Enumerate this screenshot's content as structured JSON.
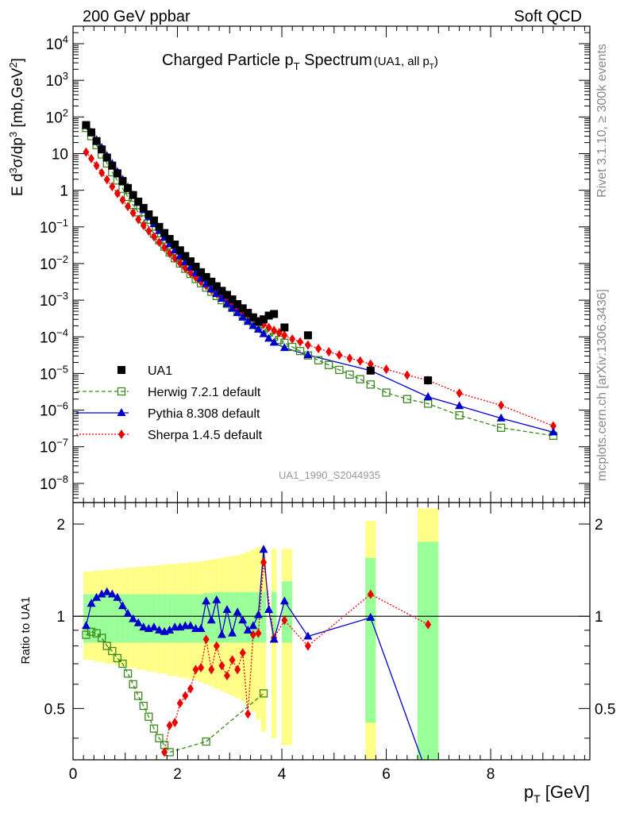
{
  "header": {
    "left": "200 GeV ppbar",
    "right": "Soft QCD"
  },
  "side": {
    "rivet": "Rivet 3.1.10, ≥ 300k events",
    "mcplots": "mcplots.cern.ch [arXiv:1306.3436]"
  },
  "title": {
    "main": "Charged Particle p",
    "main_sub": "T",
    "main_after": " Spectrum",
    "small": "(UA1, all p",
    "small_sub": "T",
    "small_after": ")"
  },
  "analysis_id": "UA1_1990_S2044935",
  "colors": {
    "data": "#000000",
    "herwig": "#3a8a1e",
    "pythia": "#0000cc",
    "sherpa": "#ee0000",
    "band_inner": "#99ff99",
    "band_outer": "#ffff88"
  },
  "chart_data": [
    {
      "type": "scatter",
      "panel": "main",
      "ylabel": "E d³σ/dp³ [mb,GeV⁻²]",
      "yscale": "log",
      "ylim": [
        3e-09,
        30000
      ],
      "xlim": [
        0,
        9.9
      ],
      "y_ticklabels": [
        {
          "base": "10",
          "exp": "4"
        },
        {
          "base": "10",
          "exp": "3"
        },
        {
          "base": "10",
          "exp": "2"
        },
        {
          "base": "10",
          "exp": ""
        },
        {
          "base": "1",
          "exp": ""
        },
        {
          "base": "10",
          "exp": "−1"
        },
        {
          "base": "10",
          "exp": "−2"
        },
        {
          "base": "10",
          "exp": "−3"
        },
        {
          "base": "10",
          "exp": "−4"
        },
        {
          "base": "10",
          "exp": "−5"
        },
        {
          "base": "10",
          "exp": "−6"
        },
        {
          "base": "10",
          "exp": "−7"
        },
        {
          "base": "10",
          "exp": "−8"
        }
      ],
      "legend": [
        {
          "key": "data",
          "label": "UA1"
        },
        {
          "key": "herwig",
          "label": "Herwig 7.2.1 default"
        },
        {
          "key": "pythia",
          "label": "Pythia 8.308 default"
        },
        {
          "key": "sherpa",
          "label": "Sherpa 1.4.5 default"
        }
      ],
      "series": [
        {
          "name": "UA1",
          "key": "data",
          "x": [
            0.25,
            0.35,
            0.45,
            0.55,
            0.65,
            0.75,
            0.85,
            0.95,
            1.05,
            1.15,
            1.25,
            1.35,
            1.45,
            1.55,
            1.65,
            1.75,
            1.85,
            1.95,
            2.05,
            2.15,
            2.25,
            2.35,
            2.45,
            2.55,
            2.65,
            2.75,
            2.85,
            2.95,
            3.05,
            3.15,
            3.25,
            3.35,
            3.45,
            3.55,
            3.65,
            3.75,
            3.85,
            4.05,
            4.5,
            5.7,
            6.8
          ],
          "y": [
            60,
            38,
            22,
            13,
            7.8,
            4.7,
            2.9,
            1.8,
            1.15,
            0.74,
            0.49,
            0.33,
            0.22,
            0.15,
            0.1,
            0.068,
            0.047,
            0.033,
            0.023,
            0.016,
            0.0115,
            0.0082,
            0.0058,
            0.0043,
            0.0032,
            0.0024,
            0.0018,
            0.0014,
            0.00105,
            0.00078,
            0.0006,
            0.00045,
            0.00034,
            0.00026,
            0.0003,
            0.00038,
            0.00042,
            0.00018,
            0.00011,
            1.2e-05,
            6.5e-06
          ]
        },
        {
          "name": "Herwig 7.2.1 default",
          "key": "herwig",
          "x": [
            0.25,
            0.35,
            0.45,
            0.55,
            0.65,
            0.75,
            0.85,
            0.95,
            1.05,
            1.15,
            1.25,
            1.35,
            1.45,
            1.55,
            1.65,
            1.75,
            1.85,
            1.95,
            2.05,
            2.15,
            2.25,
            2.35,
            2.45,
            2.55,
            2.65,
            2.75,
            2.85,
            2.95,
            3.05,
            3.15,
            3.25,
            3.35,
            3.45,
            3.55,
            3.65,
            3.75,
            3.85,
            3.95,
            4.05,
            4.2,
            4.35,
            4.5,
            4.7,
            4.9,
            5.1,
            5.3,
            5.5,
            5.7,
            6.0,
            6.4,
            6.8,
            7.4,
            8.2,
            9.2
          ],
          "y": [
            50,
            30,
            17,
            9.5,
            5.4,
            3.1,
            1.85,
            1.1,
            0.66,
            0.4,
            0.25,
            0.16,
            0.1,
            0.065,
            0.043,
            0.029,
            0.02,
            0.014,
            0.01,
            0.0072,
            0.0052,
            0.0038,
            0.0029,
            0.0022,
            0.0017,
            0.0013,
            0.001,
            0.0008,
            0.00062,
            0.00049,
            0.00039,
            0.00031,
            0.00025,
            0.0002,
            0.00016,
            0.00013,
            0.0001,
            8.3e-05,
            6.9e-05,
            5.3e-05,
            4.1e-05,
            3.1e-05,
            2.3e-05,
            1.7e-05,
            1.25e-05,
            9.3e-06,
            7e-06,
            5e-06,
            3e-06,
            2e-06,
            1.5e-06,
            7.2e-07,
            3.3e-07,
            2e-07
          ]
        },
        {
          "name": "Pythia 8.308 default",
          "key": "pythia",
          "x": [
            0.25,
            0.35,
            0.45,
            0.55,
            0.65,
            0.75,
            0.85,
            0.95,
            1.05,
            1.15,
            1.25,
            1.35,
            1.45,
            1.55,
            1.65,
            1.75,
            1.85,
            1.95,
            2.05,
            2.15,
            2.25,
            2.35,
            2.45,
            2.55,
            2.65,
            2.75,
            2.85,
            2.95,
            3.05,
            3.15,
            3.25,
            3.35,
            3.45,
            3.55,
            3.65,
            3.75,
            3.85,
            4.05,
            4.5,
            5.7,
            6.8,
            7.4,
            8.2,
            9.2
          ],
          "y": [
            58,
            38,
            23.5,
            14.5,
            8.7,
            5.3,
            3.2,
            1.95,
            1.2,
            0.74,
            0.46,
            0.29,
            0.185,
            0.12,
            0.078,
            0.051,
            0.034,
            0.023,
            0.016,
            0.011,
            0.0078,
            0.0055,
            0.0039,
            0.0028,
            0.002,
            0.0015,
            0.0011,
            0.0008,
            0.0006,
            0.00045,
            0.00034,
            0.00026,
            0.0002,
            0.00016,
            0.00012,
            9e-05,
            7e-05,
            5e-05,
            3.2e-05,
            1.2e-05,
            2.3e-06,
            1.3e-06,
            6e-07,
            2.5e-07
          ]
        },
        {
          "name": "Sherpa 1.4.5 default",
          "key": "sherpa",
          "x": [
            0.25,
            0.35,
            0.45,
            0.55,
            0.65,
            0.75,
            0.85,
            0.95,
            1.05,
            1.15,
            1.25,
            1.35,
            1.45,
            1.55,
            1.65,
            1.75,
            1.85,
            1.95,
            2.05,
            2.15,
            2.25,
            2.35,
            2.45,
            2.55,
            2.65,
            2.75,
            2.85,
            2.95,
            3.05,
            3.15,
            3.25,
            3.35,
            3.45,
            3.55,
            3.65,
            3.75,
            3.85,
            3.95,
            4.05,
            4.2,
            4.35,
            4.5,
            4.7,
            4.9,
            5.1,
            5.3,
            5.5,
            5.7,
            6.0,
            6.4,
            6.8,
            7.4,
            8.2,
            9.2
          ],
          "y": [
            11,
            7.3,
            4.7,
            3.0,
            1.95,
            1.25,
            0.82,
            0.54,
            0.36,
            0.24,
            0.16,
            0.11,
            0.077,
            0.054,
            0.038,
            0.027,
            0.019,
            0.014,
            0.0102,
            0.0075,
            0.0056,
            0.0042,
            0.0032,
            0.0025,
            0.0019,
            0.0015,
            0.0012,
            0.00095,
            0.00076,
            0.00061,
            0.00049,
            0.0004,
            0.00033,
            0.00027,
            0.00022,
            0.00018,
            0.00015,
            0.00013,
            0.00011,
            8.7e-05,
            7.3e-05,
            6e-05,
            4.8e-05,
            3.9e-05,
            3.2e-05,
            2.6e-05,
            2.2e-05,
            1.8e-05,
            1.3e-05,
            9e-06,
            6.5e-06,
            2.9e-06,
            1.35e-06,
            3.7e-07
          ]
        }
      ]
    },
    {
      "type": "line",
      "panel": "ratio",
      "ylabel": "Ratio to UA1",
      "xlabel": "p",
      "xlabel_sub": "T",
      "xlabel_after": " [GeV]",
      "ylim": [
        0.34,
        2.35
      ],
      "xlim": [
        0,
        9.9
      ],
      "x_ticklabels": [
        "0",
        "2",
        "4",
        "6",
        "8"
      ],
      "x_ticks": [
        0,
        2,
        4,
        6,
        8
      ],
      "y_ticklabels": [
        "2",
        "1",
        "0.5"
      ],
      "y_ticks": [
        2,
        1,
        0.5
      ],
      "band": {
        "x0": [
          0.2,
          0.3,
          0.4,
          0.5,
          0.6,
          0.7,
          0.8,
          0.9,
          1.0,
          1.1,
          1.2,
          1.3,
          1.4,
          1.5,
          1.6,
          1.7,
          1.8,
          1.9,
          2.0,
          2.1,
          2.2,
          2.3,
          2.4,
          2.5,
          2.6,
          2.7,
          2.8,
          2.9,
          3.0,
          3.1,
          3.2,
          3.3,
          3.4,
          3.5,
          3.6,
          3.8,
          4.0,
          4.6,
          5.6,
          6.6
        ],
        "x1": [
          0.3,
          0.4,
          0.5,
          0.6,
          0.7,
          0.8,
          0.9,
          1.0,
          1.1,
          1.2,
          1.3,
          1.4,
          1.5,
          1.6,
          1.7,
          1.8,
          1.9,
          2.0,
          2.1,
          2.2,
          2.3,
          2.4,
          2.5,
          2.6,
          2.7,
          2.8,
          2.9,
          3.0,
          3.1,
          3.2,
          3.3,
          3.4,
          3.5,
          3.6,
          3.7,
          3.9,
          4.2,
          4.6,
          5.8,
          7.0
        ],
        "in_lo": [
          0.82,
          0.82,
          0.82,
          0.82,
          0.82,
          0.82,
          0.82,
          0.82,
          0.82,
          0.82,
          0.82,
          0.82,
          0.82,
          0.82,
          0.82,
          0.82,
          0.82,
          0.82,
          0.82,
          0.82,
          0.82,
          0.82,
          0.82,
          0.82,
          0.82,
          0.82,
          0.82,
          0.82,
          0.82,
          0.82,
          0.82,
          0.82,
          0.82,
          0.82,
          0.82,
          0.82,
          0.82,
          0.7,
          0.45,
          0.3
        ],
        "in_hi": [
          1.18,
          1.18,
          1.18,
          1.18,
          1.18,
          1.18,
          1.18,
          1.18,
          1.18,
          1.18,
          1.18,
          1.18,
          1.18,
          1.18,
          1.18,
          1.18,
          1.18,
          1.18,
          1.18,
          1.18,
          1.18,
          1.18,
          1.18,
          1.19,
          1.19,
          1.2,
          1.2,
          1.2,
          1.2,
          1.2,
          1.2,
          1.2,
          1.2,
          1.2,
          1.2,
          1.2,
          1.3,
          1.45,
          1.55,
          1.75
        ],
        "out_lo": [
          0.72,
          0.72,
          0.71,
          0.71,
          0.7,
          0.7,
          0.69,
          0.69,
          0.68,
          0.68,
          0.67,
          0.67,
          0.66,
          0.66,
          0.65,
          0.65,
          0.64,
          0.64,
          0.63,
          0.63,
          0.62,
          0.62,
          0.61,
          0.6,
          0.59,
          0.58,
          0.57,
          0.56,
          0.55,
          0.54,
          0.53,
          0.51,
          0.49,
          0.46,
          0.42,
          0.4,
          0.38,
          0.3,
          0.3,
          0.3
        ],
        "out_hi": [
          1.4,
          1.4,
          1.41,
          1.41,
          1.42,
          1.42,
          1.43,
          1.43,
          1.44,
          1.44,
          1.45,
          1.45,
          1.46,
          1.46,
          1.47,
          1.47,
          1.48,
          1.48,
          1.49,
          1.49,
          1.5,
          1.5,
          1.51,
          1.52,
          1.53,
          1.54,
          1.55,
          1.56,
          1.57,
          1.58,
          1.6,
          1.62,
          1.65,
          1.68,
          1.7,
          1.66,
          1.66,
          1.66,
          2.05,
          2.25
        ]
      },
      "series": [
        {
          "name": "Herwig 7.2.1 default",
          "key": "herwig",
          "x": [
            0.25,
            0.35,
            0.45,
            0.55,
            0.65,
            0.75,
            0.85,
            0.95,
            1.05,
            1.15,
            1.25,
            1.35,
            1.45,
            1.55,
            1.65,
            1.75,
            1.85,
            2.55,
            3.65
          ],
          "y": [
            0.87,
            0.89,
            0.88,
            0.85,
            0.8,
            0.77,
            0.73,
            0.7,
            0.65,
            0.6,
            0.55,
            0.51,
            0.47,
            0.43,
            0.4,
            0.38,
            0.36,
            0.39,
            0.56
          ]
        },
        {
          "name": "Pythia 8.308 default",
          "key": "pythia",
          "x": [
            0.25,
            0.35,
            0.45,
            0.55,
            0.65,
            0.75,
            0.85,
            0.95,
            1.05,
            1.15,
            1.25,
            1.35,
            1.45,
            1.55,
            1.65,
            1.75,
            1.85,
            1.95,
            2.05,
            2.15,
            2.25,
            2.35,
            2.45,
            2.55,
            2.65,
            2.75,
            2.85,
            2.95,
            3.05,
            3.15,
            3.25,
            3.35,
            3.45,
            3.55,
            3.65,
            3.75,
            3.85,
            4.05,
            4.5,
            5.7,
            6.8
          ],
          "y": [
            0.93,
            1.1,
            1.15,
            1.18,
            1.2,
            1.18,
            1.15,
            1.08,
            1.02,
            0.98,
            0.95,
            0.92,
            0.91,
            0.92,
            0.9,
            0.89,
            0.9,
            0.92,
            0.92,
            0.93,
            0.93,
            0.91,
            0.91,
            1.12,
            0.97,
            1.13,
            0.87,
            1.05,
            0.88,
            1.03,
            0.97,
            0.9,
            0.93,
            1.01,
            1.65,
            1.05,
            0.84,
            1.12,
            0.86,
            0.99,
            0.3
          ]
        },
        {
          "name": "Sherpa 1.4.5 default",
          "key": "sherpa",
          "x": [
            1.75,
            1.85,
            1.95,
            2.05,
            2.15,
            2.25,
            2.35,
            2.45,
            2.55,
            2.65,
            2.75,
            2.85,
            2.95,
            3.05,
            3.15,
            3.25,
            3.35,
            3.45,
            3.55,
            3.65,
            3.85,
            4.05,
            4.5,
            5.7,
            6.8
          ],
          "y": [
            0.36,
            0.44,
            0.45,
            0.52,
            0.55,
            0.58,
            0.67,
            0.68,
            0.84,
            0.67,
            0.8,
            0.69,
            0.64,
            0.72,
            0.67,
            0.76,
            0.48,
            0.87,
            0.88,
            1.5,
            0.85,
            0.97,
            0.8,
            1.18,
            0.94
          ]
        }
      ]
    }
  ]
}
